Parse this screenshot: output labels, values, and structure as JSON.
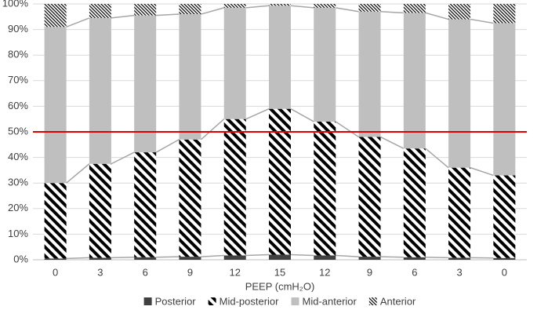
{
  "chart_data": {
    "type": "stacked_bar",
    "x_label": "PEEP (cmH₂O)",
    "categories": [
      "0",
      "3",
      "6",
      "9",
      "12",
      "15",
      "12",
      "9",
      "6",
      "3",
      "0"
    ],
    "series": [
      {
        "name": "Posterior",
        "color": "#404040",
        "fill": "solid",
        "values": [
          0.5,
          0.8,
          1,
          1.2,
          1.7,
          2,
          1.7,
          1.2,
          1,
          0.8,
          0.7
        ]
      },
      {
        "name": "Mid-posterior",
        "color": "#000000",
        "fill": "hatch-bold",
        "values": [
          29.5,
          36.7,
          41,
          45.8,
          53.3,
          57,
          52.3,
          46.8,
          42.5,
          35.2,
          32.3
        ]
      },
      {
        "name": "Mid-anterior",
        "color": "#bfbfbf",
        "fill": "solid",
        "values": [
          61,
          57,
          53.5,
          49,
          43.5,
          40.3,
          44.5,
          49,
          53,
          58,
          59.5
        ]
      },
      {
        "name": "Anterior",
        "color": "#000000",
        "fill": "hatch-fine",
        "values": [
          9,
          5.5,
          4.5,
          4,
          1.5,
          0.7,
          1.5,
          3,
          3.5,
          6,
          7.5
        ]
      }
    ],
    "ylim": [
      0,
      100
    ],
    "yticks": [
      {
        "value": 0,
        "label": "0%"
      },
      {
        "value": 10,
        "label": "10%"
      },
      {
        "value": 20,
        "label": "20%"
      },
      {
        "value": 30,
        "label": "30%"
      },
      {
        "value": 40,
        "label": "40%"
      },
      {
        "value": 50,
        "label": "50%"
      },
      {
        "value": 60,
        "label": "60%"
      },
      {
        "value": 70,
        "label": "70%"
      },
      {
        "value": 80,
        "label": "80%"
      },
      {
        "value": 90,
        "label": "90%"
      },
      {
        "value": 100,
        "label": "100%"
      }
    ],
    "grid": true,
    "series_lines": true,
    "reference_line": {
      "value": 50,
      "color": "#e00000"
    },
    "legend": "bottom"
  }
}
